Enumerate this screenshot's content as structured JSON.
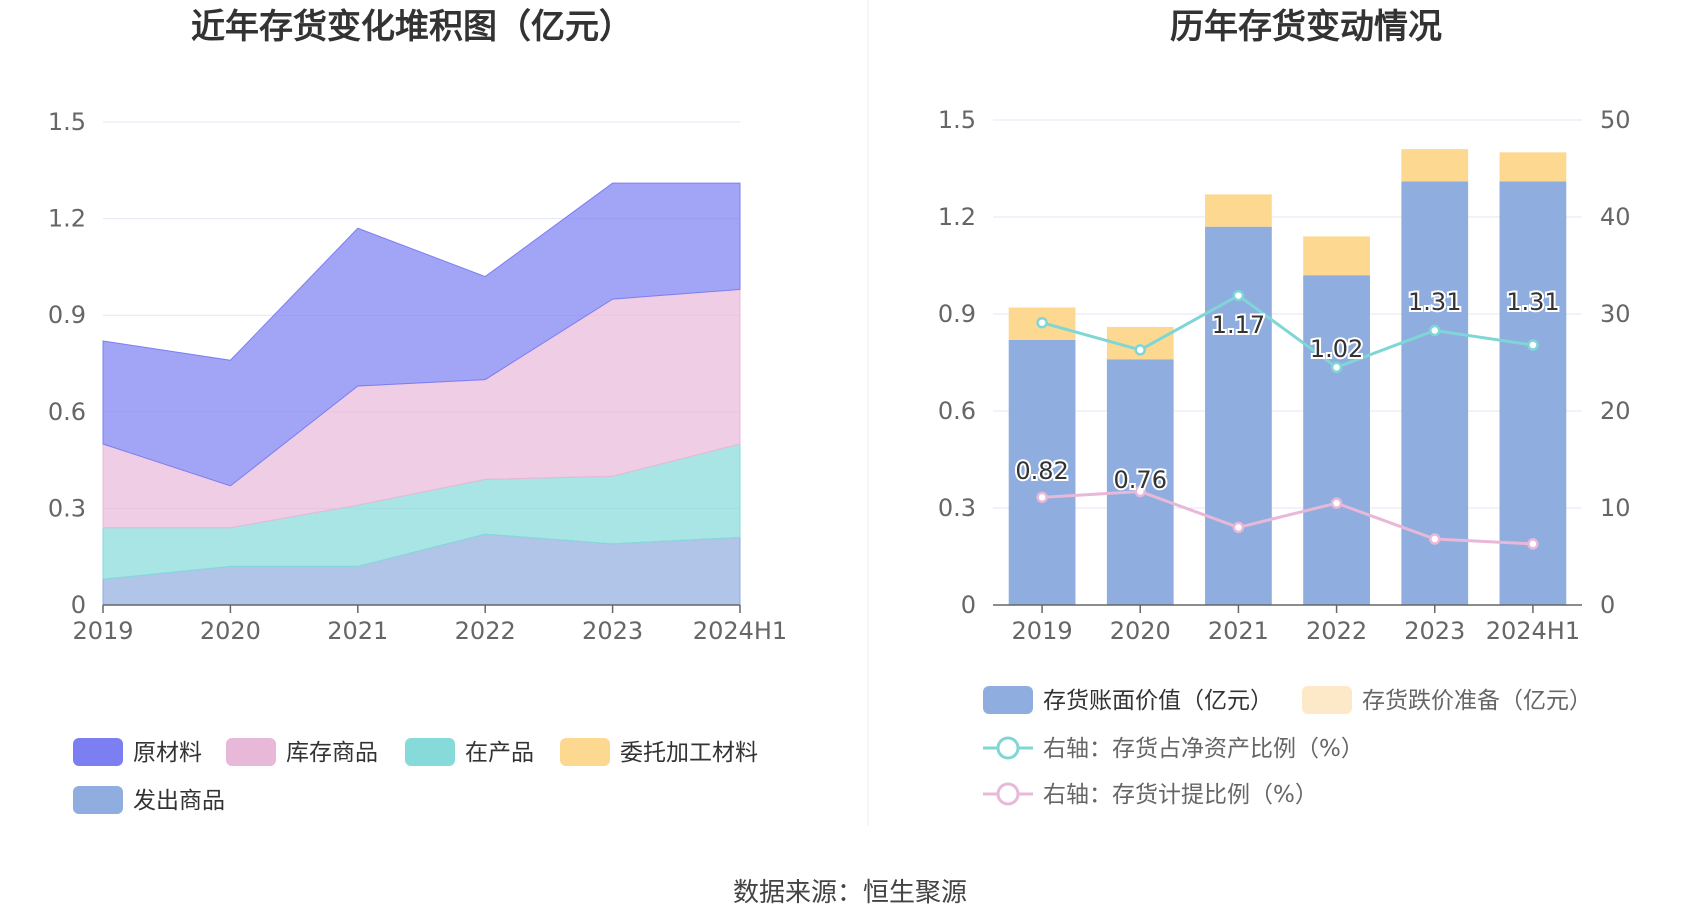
{
  "source": "数据来源：恒生聚源",
  "chart_data": [
    {
      "type": "area",
      "stacked": true,
      "title": "近年存货变化堆积图（亿元）",
      "categories": [
        "2019",
        "2020",
        "2021",
        "2022",
        "2023",
        "2024H1"
      ],
      "ylim": [
        0,
        1.5
      ],
      "yticks": [
        "0",
        "0.3",
        "0.6",
        "0.9",
        "1.2",
        "1.5"
      ],
      "ytick_values": [
        0,
        0.3,
        0.6,
        0.9,
        1.2,
        1.5
      ],
      "grid": true,
      "legend_placement": "bottom",
      "series": [
        {
          "name": "原材料",
          "color": "#7b7ff2",
          "values": [
            0.32,
            0.39,
            0.49,
            0.32,
            0.36,
            0.33
          ]
        },
        {
          "name": "库存商品",
          "color": "#e8b8d8",
          "values": [
            0.26,
            0.13,
            0.37,
            0.31,
            0.55,
            0.48
          ]
        },
        {
          "name": "在产品",
          "color": "#86dada",
          "values": [
            0.16,
            0.12,
            0.19,
            0.17,
            0.21,
            0.29
          ]
        },
        {
          "name": "委托加工材料",
          "color": "#fdd891",
          "values": [
            0,
            0,
            0,
            0,
            0,
            0
          ]
        },
        {
          "name": "发出商品",
          "color": "#8fadde",
          "values": [
            0.08,
            0.12,
            0.12,
            0.22,
            0.19,
            0.21
          ]
        }
      ]
    },
    {
      "type": "bar",
      "stacked": true,
      "title": "历年存货变动情况",
      "categories": [
        "2019",
        "2020",
        "2021",
        "2022",
        "2023",
        "2024H1"
      ],
      "ylim": [
        0,
        1.5
      ],
      "yticks": [
        "0",
        "0.3",
        "0.6",
        "0.9",
        "1.2",
        "1.5"
      ],
      "ytick_values": [
        0,
        0.3,
        0.6,
        0.9,
        1.2,
        1.5
      ],
      "y2lim": [
        0,
        50
      ],
      "y2ticks": [
        "0",
        "10",
        "20",
        "30",
        "40",
        "50"
      ],
      "y2tick_values": [
        0,
        10,
        20,
        30,
        40,
        50
      ],
      "grid": true,
      "legend_placement": "bottom",
      "series": [
        {
          "name": "存货账面价值（亿元）",
          "type": "bar",
          "color": "#8fadde",
          "values": [
            0.82,
            0.76,
            1.17,
            1.02,
            1.31,
            1.31
          ],
          "labels": [
            "0.82",
            "0.76",
            "1.17",
            "1.02",
            "1.31",
            "1.31"
          ]
        },
        {
          "name": "存货跌价准备（亿元）",
          "type": "bar",
          "color": "#fdd891",
          "legend_color": "#fde8c8",
          "values": [
            0.1,
            0.1,
            0.1,
            0.12,
            0.1,
            0.09
          ]
        },
        {
          "name": "右轴：存货占净资产比例（%）",
          "type": "line",
          "axis": "right",
          "color": "#7fd6d6",
          "values": [
            29.1,
            26.3,
            31.9,
            24.5,
            28.3,
            26.8
          ]
        },
        {
          "name": "右轴：存货计提比例（%）",
          "type": "line",
          "axis": "right",
          "color": "#e8b8d8",
          "values": [
            11.1,
            11.7,
            8.0,
            10.5,
            6.8,
            6.3
          ]
        }
      ]
    }
  ]
}
